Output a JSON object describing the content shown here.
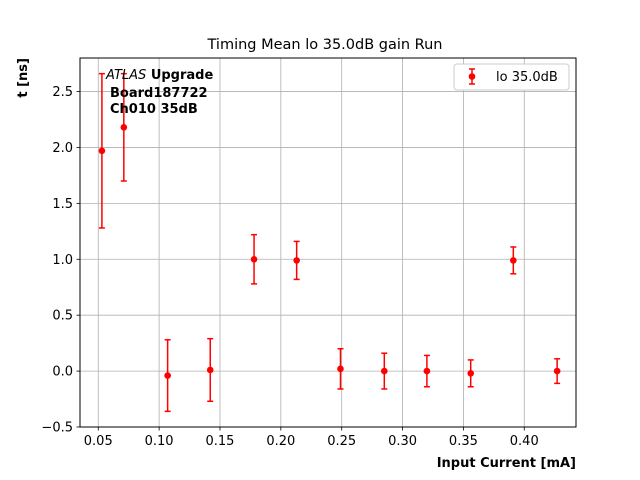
{
  "chart_data": {
    "type": "scatter",
    "title": "Timing Mean lo 35.0dB gain Run",
    "xlabel": "Input Current [mA]",
    "ylabel": "t [ns]",
    "xlim": [
      0.035,
      0.4425
    ],
    "ylim": [
      -0.5,
      2.8
    ],
    "xticks": [
      "0.05",
      "0.10",
      "0.15",
      "0.20",
      "0.25",
      "0.30",
      "0.35",
      "0.40"
    ],
    "yticks": [
      "−0.5",
      "0.0",
      "0.5",
      "1.0",
      "1.5",
      "2.0",
      "2.5"
    ],
    "grid": true,
    "legend_position": "top-right",
    "color": "#ff0000",
    "annotation": {
      "italic": "ATLAS",
      "bold": "Upgrade",
      "line2": "Board187722",
      "line3": "Ch010 35dB"
    },
    "series": [
      {
        "name": "lo 35.0dB",
        "x": [
          0.053,
          0.071,
          0.107,
          0.142,
          0.178,
          0.213,
          0.249,
          0.285,
          0.32,
          0.356,
          0.391,
          0.427
        ],
        "y": [
          1.97,
          2.18,
          -0.04,
          0.01,
          1.0,
          0.99,
          0.02,
          0.0,
          0.0,
          -0.02,
          0.99,
          0.0
        ],
        "yerr": [
          0.69,
          0.48,
          0.32,
          0.28,
          0.22,
          0.17,
          0.18,
          0.16,
          0.14,
          0.12,
          0.12,
          0.11
        ]
      }
    ]
  }
}
